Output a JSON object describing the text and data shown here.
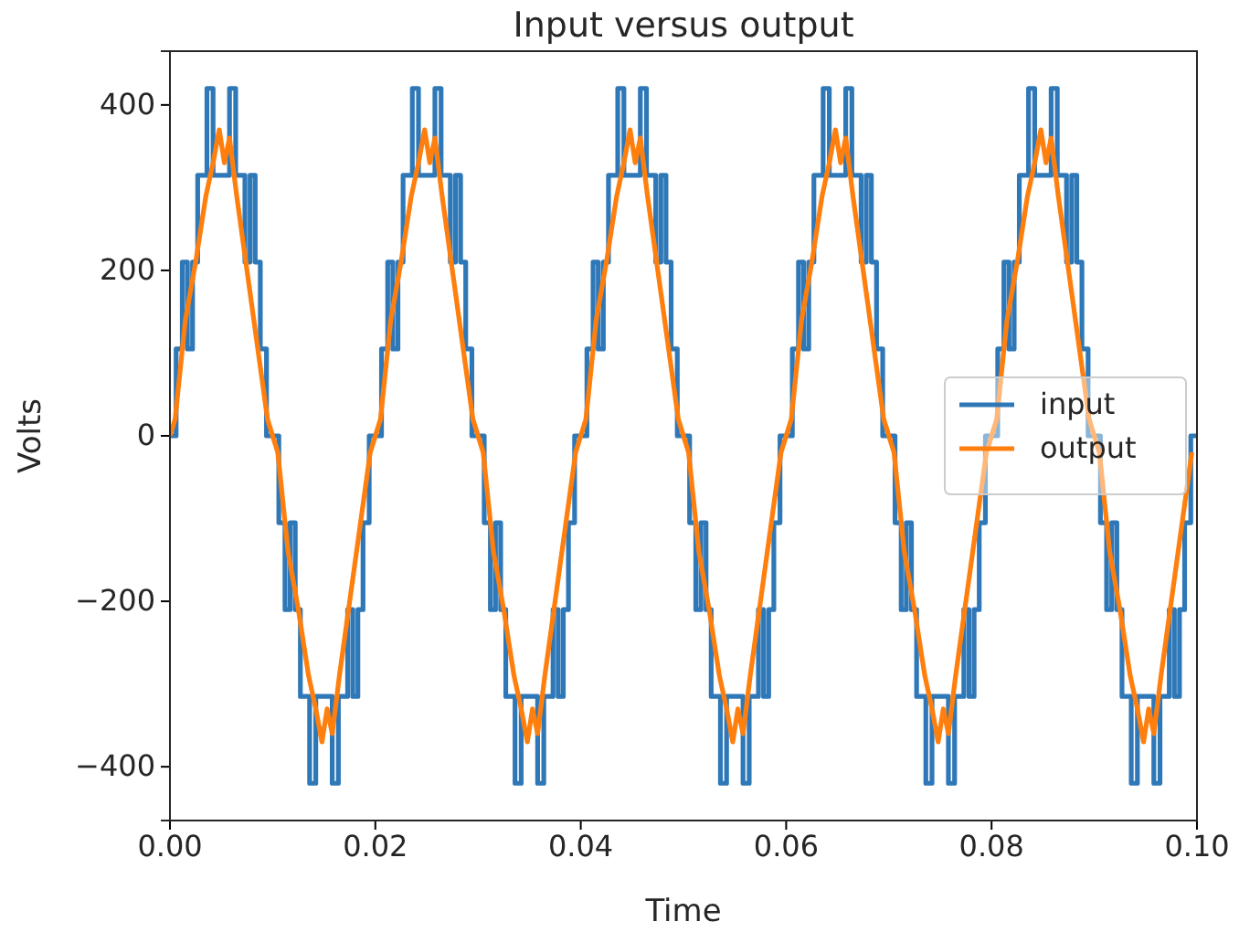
{
  "chart_data": {
    "type": "line",
    "title": "Input versus output",
    "xlabel": "Time",
    "ylabel": "Volts",
    "xlim": [
      0,
      0.1
    ],
    "ylim": [
      -465,
      465
    ],
    "xticks": [
      {
        "value": 0,
        "label": "0.00"
      },
      {
        "value": 0.02,
        "label": "0.02"
      },
      {
        "value": 0.04,
        "label": "0.04"
      },
      {
        "value": 0.06,
        "label": "0.06"
      },
      {
        "value": 0.08,
        "label": "0.08"
      },
      {
        "value": 0.1,
        "label": "0.10"
      }
    ],
    "yticks": [
      {
        "value": -400,
        "label": "−400"
      },
      {
        "value": -200,
        "label": "−200"
      },
      0,
      200,
      400
    ],
    "grid": false,
    "legend": "right",
    "line_style": "solid",
    "marker": "none",
    "series": [
      {
        "name": "input",
        "type": "step",
        "color": "#2f78b8",
        "x": [
          0,
          0.0006,
          0.0012,
          0.0017,
          0.0022,
          0.0027,
          0.0036,
          0.0042,
          0.0058,
          0.0064,
          0.0073,
          0.0078,
          0.0083,
          0.0088,
          0.0094,
          0.01,
          0.0106,
          0.0112,
          0.0117,
          0.0122,
          0.0127,
          0.0136,
          0.0142,
          0.0158,
          0.0164,
          0.0173,
          0.0178,
          0.0183,
          0.0188,
          0.0194,
          0.02,
          0.0206,
          0.0212,
          0.0217,
          0.0222,
          0.0227,
          0.0236,
          0.0242,
          0.0258,
          0.0264,
          0.0273,
          0.0278,
          0.0283,
          0.0288,
          0.0294,
          0.03,
          0.0306,
          0.0312,
          0.0317,
          0.0322,
          0.0327,
          0.0336,
          0.0342,
          0.0358,
          0.0364,
          0.0373,
          0.0378,
          0.0383,
          0.0388,
          0.0394,
          0.04,
          0.0406,
          0.0412,
          0.0417,
          0.0422,
          0.0427,
          0.0436,
          0.0442,
          0.0458,
          0.0464,
          0.0473,
          0.0478,
          0.0483,
          0.0488,
          0.0494,
          0.05,
          0.0506,
          0.0512,
          0.0517,
          0.0522,
          0.0527,
          0.0536,
          0.0542,
          0.0558,
          0.0564,
          0.0573,
          0.0578,
          0.0583,
          0.0588,
          0.0594,
          0.06,
          0.0606,
          0.0612,
          0.0617,
          0.0622,
          0.0627,
          0.0636,
          0.0642,
          0.0658,
          0.0664,
          0.0673,
          0.0678,
          0.0683,
          0.0688,
          0.0694,
          0.07,
          0.0706,
          0.0712,
          0.0717,
          0.0722,
          0.0727,
          0.0736,
          0.0742,
          0.0758,
          0.0764,
          0.0773,
          0.0778,
          0.0783,
          0.0788,
          0.0794,
          0.08,
          0.0806,
          0.0812,
          0.0817,
          0.0822,
          0.0827,
          0.0836,
          0.0842,
          0.0858,
          0.0864,
          0.0873,
          0.0878,
          0.0883,
          0.0888,
          0.0894,
          0.09,
          0.0906,
          0.0912,
          0.0917,
          0.0922,
          0.0927,
          0.0936,
          0.0942,
          0.0958,
          0.0964,
          0.0973,
          0.0978,
          0.0983,
          0.0988,
          0.0994,
          0.1
        ],
        "values": [
          0,
          105,
          210,
          105,
          210,
          315,
          420,
          315,
          420,
          315,
          210,
          315,
          210,
          105,
          0,
          0,
          -105,
          -210,
          -105,
          -210,
          -315,
          -420,
          -315,
          -420,
          -315,
          -210,
          -315,
          -210,
          -105,
          0,
          0,
          105,
          210,
          105,
          210,
          315,
          420,
          315,
          420,
          315,
          210,
          315,
          210,
          105,
          0,
          0,
          -105,
          -210,
          -105,
          -210,
          -315,
          -420,
          -315,
          -420,
          -315,
          -210,
          -315,
          -210,
          -105,
          0,
          0,
          105,
          210,
          105,
          210,
          315,
          420,
          315,
          420,
          315,
          210,
          315,
          210,
          105,
          0,
          0,
          -105,
          -210,
          -105,
          -210,
          -315,
          -420,
          -315,
          -420,
          -315,
          -210,
          -315,
          -210,
          -105,
          0,
          0,
          105,
          210,
          105,
          210,
          315,
          420,
          315,
          420,
          315,
          210,
          315,
          210,
          105,
          0,
          0,
          -105,
          -210,
          -105,
          -210,
          -315,
          -420,
          -315,
          -420,
          -315,
          -210,
          -315,
          -210,
          -105,
          0,
          0,
          105,
          210,
          105,
          210,
          315,
          420,
          315,
          420,
          315,
          210,
          315,
          210,
          105,
          0,
          0,
          -105,
          -210,
          -105,
          -210,
          -315,
          -420,
          -315,
          -420,
          -315,
          -210,
          -315,
          -210,
          -105,
          0,
          0
        ]
      },
      {
        "name": "output",
        "type": "line",
        "color": "#ff7f0e",
        "x": [
          0,
          0.0005,
          0.0015,
          0.0025,
          0.0035,
          0.0042,
          0.0048,
          0.0053,
          0.0058,
          0.0065,
          0.0075,
          0.0085,
          0.0095,
          0.0105,
          0.0115,
          0.0125,
          0.0135,
          0.0142,
          0.0148,
          0.0153,
          0.0158,
          0.0165,
          0.0175,
          0.0185,
          0.0195,
          0.0205,
          0.0215,
          0.0225,
          0.0235,
          0.0242,
          0.0248,
          0.0253,
          0.0258,
          0.0265,
          0.0275,
          0.0285,
          0.0295,
          0.0305,
          0.0315,
          0.0325,
          0.0335,
          0.0342,
          0.0348,
          0.0353,
          0.0358,
          0.0365,
          0.0375,
          0.0385,
          0.0395,
          0.0405,
          0.0415,
          0.0425,
          0.0435,
          0.0442,
          0.0448,
          0.0453,
          0.0458,
          0.0465,
          0.0475,
          0.0485,
          0.0495,
          0.0505,
          0.0515,
          0.0525,
          0.0535,
          0.0542,
          0.0548,
          0.0553,
          0.0558,
          0.0565,
          0.0575,
          0.0585,
          0.0595,
          0.0605,
          0.0615,
          0.0625,
          0.0635,
          0.0642,
          0.0648,
          0.0653,
          0.0658,
          0.0665,
          0.0675,
          0.0685,
          0.0695,
          0.0705,
          0.0715,
          0.0725,
          0.0735,
          0.0742,
          0.0748,
          0.0753,
          0.0758,
          0.0765,
          0.0775,
          0.0785,
          0.0795,
          0.0805,
          0.0815,
          0.0825,
          0.0835,
          0.0842,
          0.0848,
          0.0853,
          0.0858,
          0.0865,
          0.0875,
          0.0885,
          0.0895,
          0.0905,
          0.0915,
          0.0925,
          0.0935,
          0.0942,
          0.0948,
          0.0953,
          0.0958,
          0.0965,
          0.0975,
          0.0985,
          0.0995
        ],
        "values": [
          0,
          20,
          140,
          210,
          290,
          330,
          370,
          330,
          360,
          290,
          200,
          110,
          20,
          -20,
          -140,
          -210,
          -290,
          -330,
          -370,
          -330,
          -360,
          -290,
          -200,
          -110,
          -20,
          20,
          140,
          210,
          290,
          330,
          370,
          330,
          360,
          290,
          200,
          110,
          20,
          -20,
          -140,
          -210,
          -290,
          -330,
          -370,
          -330,
          -360,
          -290,
          -200,
          -110,
          -20,
          20,
          140,
          210,
          290,
          330,
          370,
          330,
          360,
          290,
          200,
          110,
          20,
          -20,
          -140,
          -210,
          -290,
          -330,
          -370,
          -330,
          -360,
          -290,
          -200,
          -110,
          -20,
          20,
          140,
          210,
          290,
          330,
          370,
          330,
          360,
          290,
          200,
          110,
          20,
          -20,
          -140,
          -210,
          -290,
          -330,
          -370,
          -330,
          -360,
          -290,
          -200,
          -110,
          -20,
          20,
          140,
          210,
          290,
          330,
          370,
          330,
          360,
          290,
          200,
          110,
          20,
          -20,
          -140,
          -210,
          -290,
          -330,
          -370,
          -330,
          -360,
          -290,
          -200,
          -110,
          -20
        ]
      }
    ]
  }
}
